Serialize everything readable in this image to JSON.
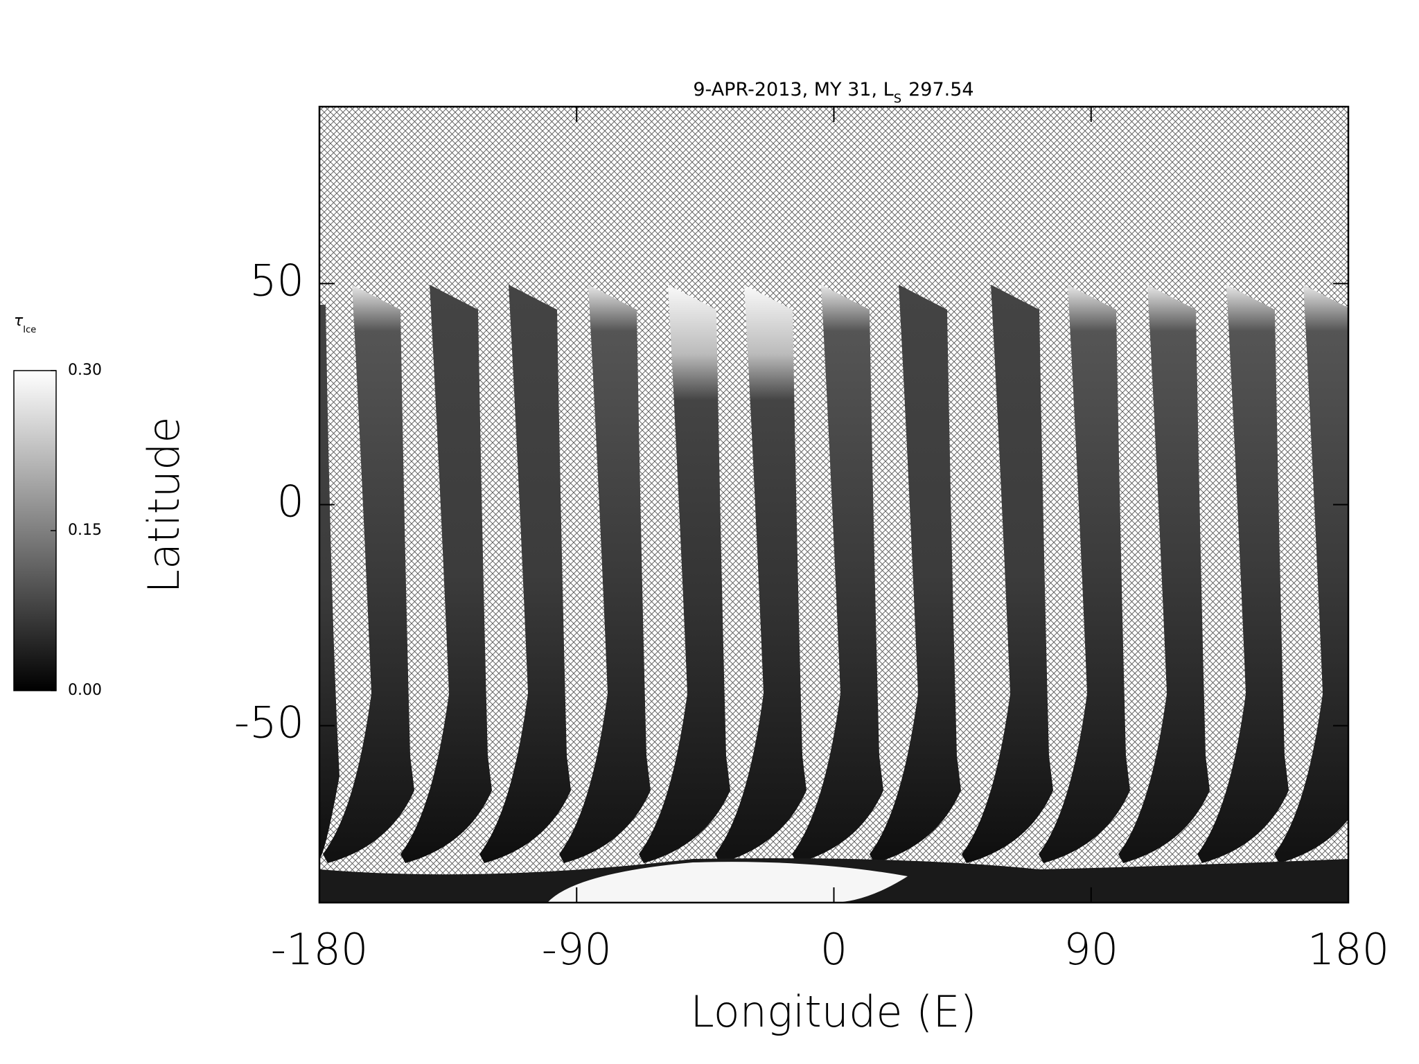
{
  "chart_data": {
    "type": "heatmap",
    "title": "9-APR-2013, MY 31,  L",
    "title_subscript": "S",
    "title_suffix": "297.54",
    "x_label": "Longitude (E)",
    "y_label": "Latitude",
    "xlim": [
      -180,
      180
    ],
    "ylim": [
      -90,
      90
    ],
    "xticks": [
      -180,
      -90,
      0,
      90,
      180
    ],
    "yticks": [
      -50,
      0,
      50
    ],
    "colorbar": {
      "label": "τ",
      "label_subscript": "Ice",
      "clim": [
        0,
        0.3
      ],
      "ticks": [
        {
          "value": 0.3,
          "label": "0.30"
        },
        {
          "value": 0.15,
          "label": "0.15"
        },
        {
          "value": 0,
          "label": "0.00"
        }
      ],
      "colors": [
        "#000000",
        "#ffffff"
      ]
    }
  }
}
